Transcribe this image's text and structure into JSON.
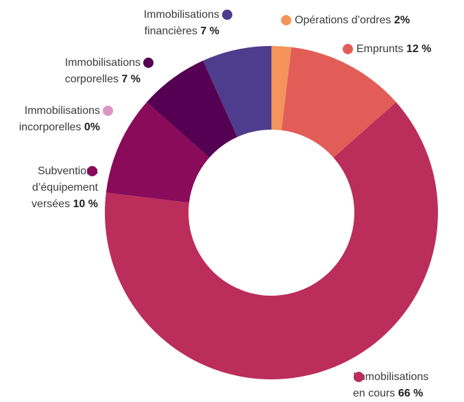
{
  "chart_data": {
    "type": "donut",
    "categories": [
      "Opérations d’ordres",
      "Emprunts",
      "Immobilisations en cours",
      "Subventions d’équipement versées",
      "Immobilisations incorporelles",
      "Immobilisations corporelles",
      "Immobilisations financières"
    ],
    "values": [
      2,
      12,
      66,
      10,
      0,
      7,
      7
    ],
    "value_labels": [
      "2%",
      "12 %",
      "66 %",
      "10 %",
      "0%",
      "7 %",
      "7 %"
    ],
    "colors": [
      "#f4935a",
      "#e25d58",
      "#bb2d5b",
      "#890b5a",
      "#d995c4",
      "#550052",
      "#4e3d8c"
    ]
  }
}
